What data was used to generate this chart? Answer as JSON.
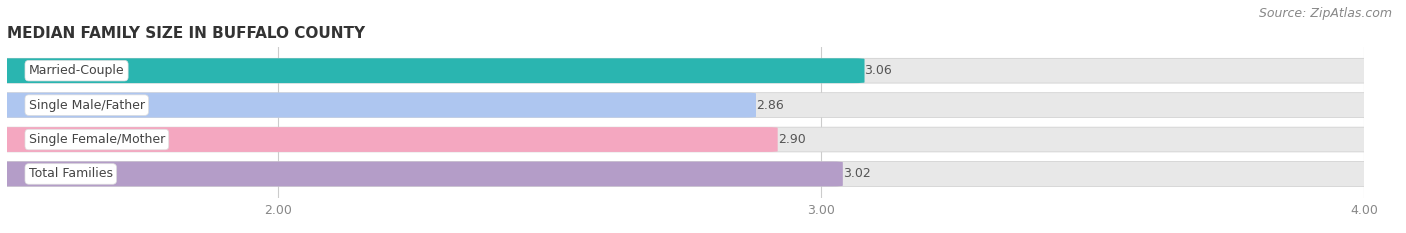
{
  "title": "MEDIAN FAMILY SIZE IN BUFFALO COUNTY",
  "source": "Source: ZipAtlas.com",
  "categories": [
    "Married-Couple",
    "Single Male/Father",
    "Single Female/Mother",
    "Total Families"
  ],
  "values": [
    3.06,
    2.86,
    2.9,
    3.02
  ],
  "bar_colors": [
    "#2ab5b0",
    "#aec6f0",
    "#f4a7c0",
    "#b49dc8"
  ],
  "bar_bg_color": "#e8e8e8",
  "xlim_data": [
    1.5,
    4.0
  ],
  "xaxis_min": 2.0,
  "xaxis_max": 4.0,
  "xticks": [
    2.0,
    3.0,
    4.0
  ],
  "bar_height": 0.68,
  "background_color": "#ffffff",
  "title_fontsize": 11,
  "label_fontsize": 9,
  "value_fontsize": 9,
  "tick_fontsize": 9,
  "source_fontsize": 9
}
